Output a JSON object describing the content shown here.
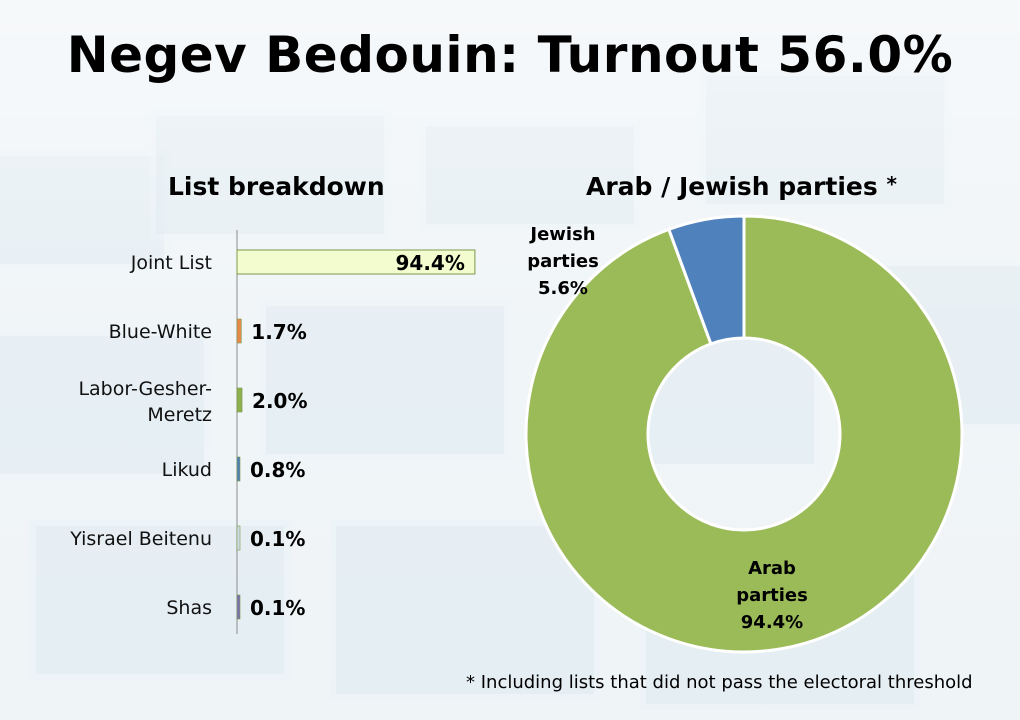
{
  "title": "Negev Bedouin: Turnout 56.0%",
  "footnote": "* Including lists that did not pass the electoral threshold",
  "chart_data": [
    {
      "type": "bar",
      "orientation": "horizontal",
      "title": "List breakdown",
      "categories": [
        "Joint List",
        "Blue-White",
        "Labor-Gesher-Meretz",
        "Likud",
        "Yisrael Beitenu",
        "Shas"
      ],
      "category_lines": [
        [
          "Joint List"
        ],
        [
          "Blue-White"
        ],
        [
          "Labor-Gesher-",
          "Meretz"
        ],
        [
          "Likud"
        ],
        [
          "Yisrael Beitenu"
        ],
        [
          "Shas"
        ]
      ],
      "values": [
        94.4,
        1.7,
        2.0,
        0.8,
        0.1,
        0.1
      ],
      "labels": [
        "94.4%",
        "1.7%",
        "2.0%",
        "0.8%",
        "0.1%",
        "0.1%"
      ],
      "colors": [
        "#f3fccf",
        "#e5894a",
        "#8db04e",
        "#4f7fb7",
        "#cfdde8",
        "#7b6fb0"
      ],
      "xlim": [
        0,
        100
      ],
      "grid": false
    },
    {
      "type": "pie",
      "donut": true,
      "title": "Arab / Jewish parties",
      "title_mark": "*",
      "slices": [
        {
          "label_lines": [
            "Arab",
            "parties",
            "94.4%"
          ],
          "value": 94.4,
          "color": "#9bbb59"
        },
        {
          "label_lines": [
            "Jewish",
            "parties",
            "5.6%"
          ],
          "value": 5.6,
          "color": "#4f81bd"
        }
      ]
    }
  ]
}
